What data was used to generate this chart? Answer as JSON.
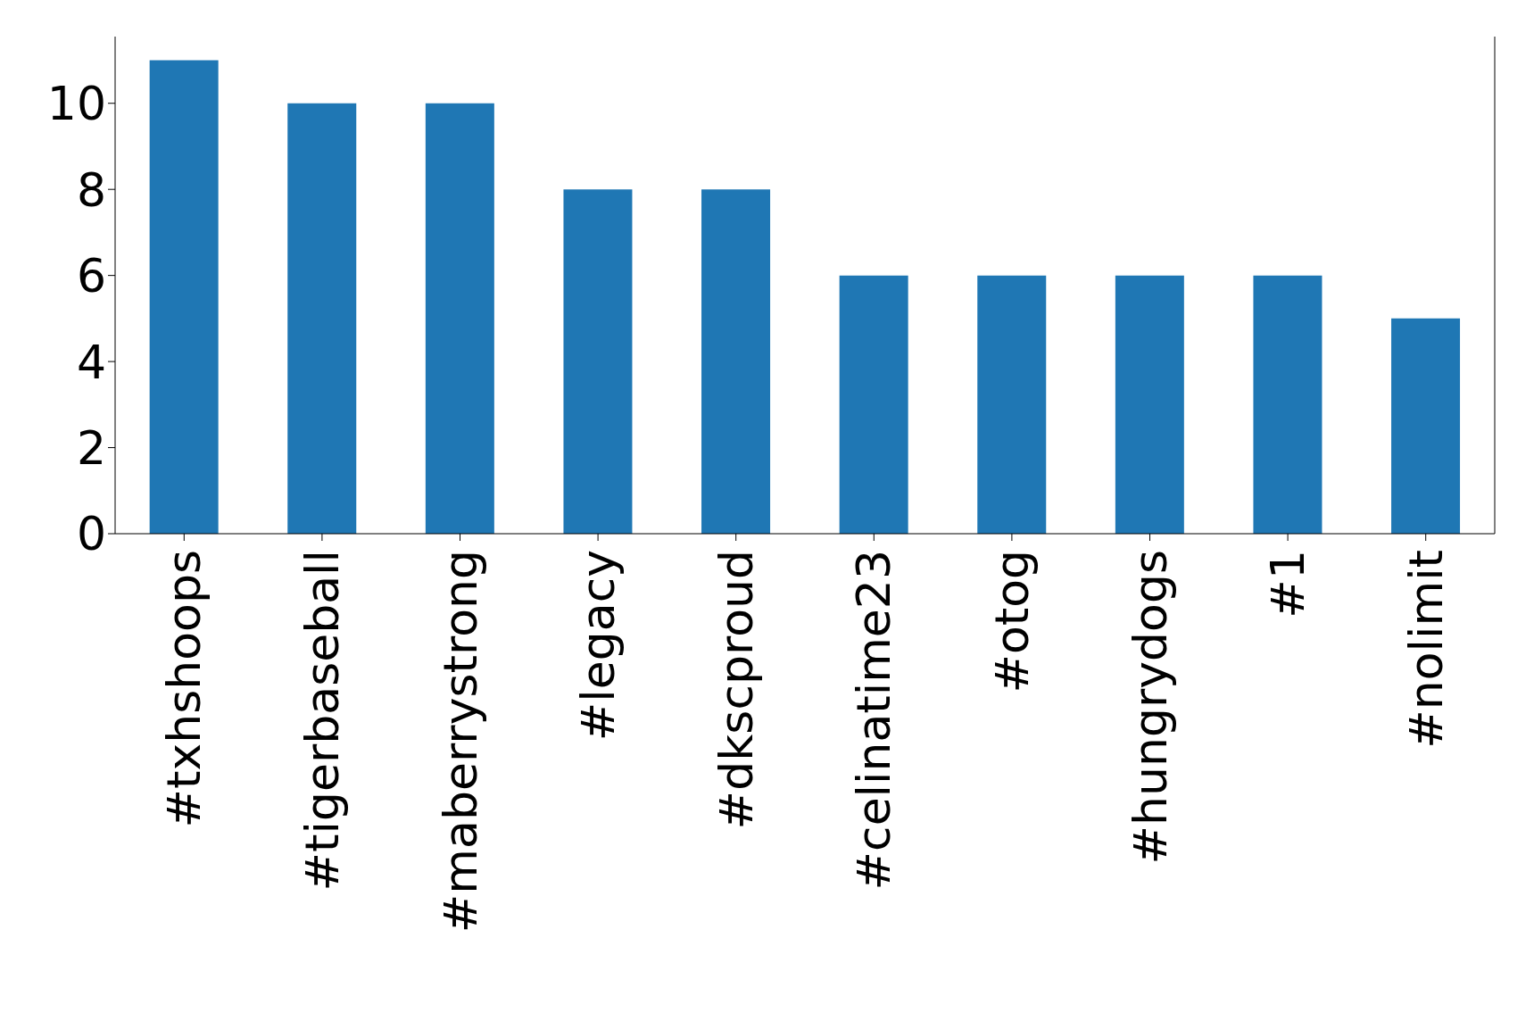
{
  "chart_data": {
    "type": "bar",
    "categories": [
      "#txhshoops",
      "#tigerbaseball",
      "#maberrystrong",
      "#legacy",
      "#dkscproud",
      "#celinatime23",
      "#otog",
      "#hungrydogs",
      "#1",
      "#nolimit"
    ],
    "values": [
      11,
      10,
      10,
      8,
      8,
      6,
      6,
      6,
      6,
      5
    ],
    "color": "#1f77b4",
    "ylim": [
      0,
      11.55
    ],
    "yticks": [
      0,
      2,
      4,
      6,
      8,
      10
    ],
    "grid": false,
    "legend": false
  }
}
